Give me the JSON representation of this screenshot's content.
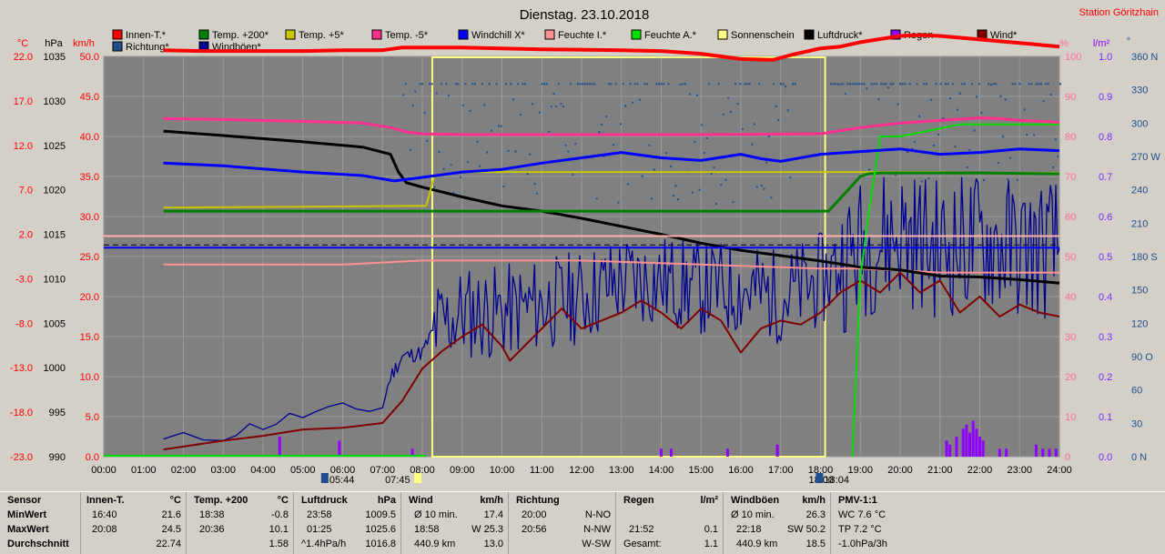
{
  "title": "Dienstag. 23.10.2018",
  "station": "Station Göritzhain",
  "units": {
    "celsius": "°C",
    "hpa": "hPa",
    "kmh": "km/h",
    "percent": "%",
    "lm2": "l/m²",
    "deg": "°"
  },
  "colors": {
    "innen": "#ff0000",
    "temp200": "#008000",
    "temp5p": "#c8c800",
    "temp5m": "#ff2f8f",
    "windchill": "#0000ff",
    "feuchteI": "#ff9090",
    "feuchteA": "#00e000",
    "sonne": "#ffff80",
    "luftdruck": "#000000",
    "regen": "#9000ff",
    "wind": "#800000",
    "richtung": "#1f4f8f",
    "windboeen": "#000090"
  },
  "legend": [
    {
      "label": "Innen-T.*",
      "color": "#ff0000"
    },
    {
      "label": "Temp. +200*",
      "color": "#008000"
    },
    {
      "label": "Temp. +5*",
      "color": "#c8c800"
    },
    {
      "label": "Temp. -5*",
      "color": "#ff2f8f"
    },
    {
      "label": "Windchill X*",
      "color": "#0000ff"
    },
    {
      "label": "Feuchte I.*",
      "color": "#ff9090"
    },
    {
      "label": "Feuchte A.*",
      "color": "#00e000"
    },
    {
      "label": "Sonnenschein",
      "color": "#ffff80"
    },
    {
      "label": "Luftdruck*",
      "color": "#000000"
    },
    {
      "label": "Regen",
      "color": "#9000ff"
    },
    {
      "label": "Wind*",
      "color": "#800000"
    },
    {
      "label": "Richtung*",
      "color": "#1f4f8f"
    },
    {
      "label": "Windböen*",
      "color": "#000090"
    }
  ],
  "chart_data": {
    "type": "line",
    "title": "Dienstag. 23.10.2018",
    "x_ticks": [
      "00:00",
      "01:00",
      "02:00",
      "03:00",
      "04:00",
      "05:00",
      "06:00",
      "07:00",
      "08:00",
      "09:00",
      "10:00",
      "11:00",
      "12:00",
      "13:00",
      "14:00",
      "15:00",
      "16:00",
      "17:00",
      "18:00",
      "19:00",
      "20:00",
      "21:00",
      "22:00",
      "23:00",
      "24:00"
    ],
    "y_temp_ticks": [
      "22.0",
      "17.0",
      "12.0",
      "7.0",
      "2.0",
      "-3.0",
      "-8.0",
      "-13.0",
      "-18.0",
      "-23.0"
    ],
    "y_hpa_ticks": [
      "1035",
      "1030",
      "1025",
      "1020",
      "1015",
      "1010",
      "1005",
      "1000",
      "995",
      "990"
    ],
    "y_kmh_ticks": [
      "50.0",
      "45.0",
      "40.0",
      "35.0",
      "30.0",
      "25.0",
      "20.0",
      "15.0",
      "10.0",
      "5.0",
      "0.0"
    ],
    "y_pct_ticks": [
      "100",
      "90",
      "80",
      "70",
      "60",
      "50",
      "40",
      "30",
      "20",
      "10",
      "0"
    ],
    "y_rain_ticks": [
      "1.0",
      "0.9",
      "0.8",
      "0.7",
      "0.6",
      "0.5",
      "0.4",
      "0.3",
      "0.2",
      "0.1",
      "0.0"
    ],
    "y_dir_ticks": [
      "360 N",
      "330",
      "300",
      "270 W",
      "240",
      "210",
      "180 S",
      "150",
      "120",
      "90 O",
      "60",
      "30",
      "0 N"
    ],
    "sun_markers": {
      "sunrise": "05:44",
      "sunset": "18:04",
      "civil_a": "07:45",
      "civil_b": "18:00"
    },
    "sunshine_interval": [
      "08:15",
      "18:07"
    ],
    "ylim_temp": [
      -23,
      22
    ],
    "ylim_kmh": [
      0,
      50
    ],
    "ylim_hpa": [
      990,
      1035
    ],
    "series": [
      {
        "name": "Innen-T.*",
        "unit": "°C",
        "x": [
          1.5,
          2.5,
          4,
          5,
          6,
          7,
          7.5,
          9,
          11,
          13,
          14,
          15,
          16,
          16.8,
          17.3,
          18,
          18.5,
          19,
          20,
          20.5,
          21,
          22,
          23,
          24
        ],
        "y": [
          22.7,
          22.6,
          22.6,
          22.6,
          22.7,
          22.7,
          23.0,
          23.0,
          22.8,
          22.7,
          22.6,
          22.3,
          21.7,
          21.6,
          22.2,
          22.9,
          23.1,
          23.6,
          24.3,
          24.4,
          24.3,
          23.9,
          23.5,
          23.1
        ]
      },
      {
        "name": "Temp. -5*",
        "unit": "°C",
        "x": [
          1.5,
          3,
          5,
          6.5,
          7.2,
          7.6,
          8,
          9,
          12,
          15,
          18,
          19,
          20,
          21,
          22,
          22.5,
          23,
          24
        ],
        "y": [
          15.0,
          14.9,
          14.7,
          14.5,
          14.0,
          13.5,
          13.3,
          13.2,
          13.2,
          13.2,
          13.3,
          14.0,
          14.5,
          14.8,
          15.1,
          15.0,
          14.8,
          14.6
        ]
      },
      {
        "name": "Temp. +200*",
        "unit": "°C",
        "x": [
          1.5,
          18.2,
          19,
          19.2,
          19.5,
          20,
          22,
          24
        ],
        "y": [
          4.6,
          4.6,
          8.5,
          8.8,
          8.9,
          8.9,
          8.9,
          8.8
        ]
      },
      {
        "name": "Temp. +5*",
        "unit": "°C",
        "x": [
          1.5,
          8.1,
          8.3,
          9,
          12,
          19,
          21,
          21,
          22.0,
          24
        ],
        "y": [
          5.0,
          5.2,
          8.5,
          9.0,
          9.0,
          9.0,
          9.0,
          9.0,
          8.9,
          8.9
        ]
      },
      {
        "name": "Windchill X*",
        "unit": "°C",
        "x": [
          1.5,
          3,
          5,
          6.5,
          7.3,
          8,
          9,
          10,
          11,
          12,
          13,
          14,
          15,
          16,
          16.5,
          17,
          18,
          19,
          20,
          21,
          22,
          23,
          24
        ],
        "y": [
          10.0,
          9.7,
          9.0,
          8.6,
          8.0,
          8.4,
          9.0,
          9.3,
          10.0,
          10.6,
          11.2,
          10.6,
          10.3,
          11.0,
          10.5,
          10.2,
          11.0,
          11.3,
          11.6,
          11.0,
          11.2,
          11.6,
          11.4
        ]
      },
      {
        "name": "Luftdruck*",
        "unit": "hPa",
        "x": [
          1.5,
          3,
          5,
          6.5,
          7.2,
          7.4,
          7.6,
          8,
          9,
          10,
          11,
          12,
          13,
          14,
          15,
          16,
          17,
          18,
          19,
          20,
          21,
          22,
          23,
          24
        ],
        "y": [
          1026.6,
          1026.1,
          1025.4,
          1024.8,
          1024.0,
          1022.0,
          1020.8,
          1020.3,
          1019.2,
          1018.2,
          1017.6,
          1016.8,
          1015.9,
          1015.0,
          1014.0,
          1013.2,
          1012.6,
          1012.0,
          1011.3,
          1011.0,
          1010.3,
          1010.2,
          1009.9,
          1009.5
        ]
      },
      {
        "name": "Feuchte I.*",
        "unit": "%",
        "x": [
          1.5,
          6,
          8,
          12,
          18,
          19,
          21,
          24
        ],
        "y": [
          48,
          48,
          49,
          49,
          47,
          47,
          46,
          46
        ]
      },
      {
        "name": "Feuchte A.*",
        "unit": "%",
        "x": [
          18.8,
          19.0,
          19.2,
          19.5,
          20,
          21,
          21.5,
          24
        ],
        "y": [
          0,
          45,
          60,
          80,
          80,
          82,
          83,
          83
        ]
      },
      {
        "name": "Wind*",
        "unit": "km/h",
        "x": [
          1.5,
          3,
          4,
          5,
          6,
          7,
          7.5,
          8,
          8.5,
          9,
          9.5,
          10,
          10.2,
          11,
          11.5,
          12,
          12.5,
          13,
          13.5,
          14,
          14.5,
          15,
          15.5,
          16,
          16.5,
          17,
          17.5,
          18,
          18.5,
          19,
          19.5,
          20,
          20.5,
          21,
          21.5,
          22,
          22.5,
          23,
          23.5,
          24
        ],
        "y": [
          0.9,
          2.0,
          2.6,
          3.4,
          3.6,
          4.2,
          7.0,
          11.0,
          13.2,
          15.0,
          16.5,
          13.8,
          12.0,
          16.0,
          18.5,
          16.0,
          17.0,
          18.0,
          19.5,
          18.0,
          16.0,
          18.5,
          17.0,
          13.0,
          16.0,
          17.0,
          16.5,
          18.0,
          20.5,
          22.0,
          20.5,
          23.0,
          20.5,
          22.0,
          18.0,
          20.0,
          17.5,
          19.0,
          18.0,
          17.5
        ]
      }
    ],
    "rain_times": [
      "04:25",
      "05:55",
      "07:45",
      "14:00",
      "14:15",
      "15:40",
      "16:55",
      "21:10",
      "21:15",
      "21:25",
      "21:35",
      "21:40",
      "21:45",
      "21:50",
      "21:55",
      "22:00",
      "22:05",
      "22:30",
      "22:40",
      "23:25",
      "23:35",
      "23:45",
      "23:55"
    ],
    "rain_values": [
      0.05,
      0.04,
      0.02,
      0.02,
      0.02,
      0.02,
      0.03,
      0.04,
      0.03,
      0.05,
      0.07,
      0.08,
      0.06,
      0.09,
      0.07,
      0.05,
      0.04,
      0.02,
      0.02,
      0.03,
      0.02,
      0.02,
      0.02
    ]
  },
  "stats": {
    "sensor": {
      "header": "Sensor",
      "min": "MinWert",
      "max": "MaxWert",
      "avg": "Durchschnitt"
    },
    "innen": {
      "header": "Innen-T.",
      "unit": "°C",
      "min_time": "16:40",
      "min_val": "21.6",
      "max_time": "20:08",
      "max_val": "24.5",
      "avg_val": "22.74"
    },
    "temp200": {
      "header": "Temp. +200",
      "unit": "°C",
      "min_time": "18:38",
      "min_val": "-0.8",
      "max_time": "20:36",
      "max_val": "10.1",
      "avg_val": "1.58"
    },
    "luftdruck": {
      "header": "Luftdruck",
      "unit": "hPa",
      "min_time": "23:58",
      "min_val": "1009.5",
      "max_time": "01:25",
      "max_val": "1025.6",
      "avg_label": "^1.4hPa/h",
      "avg_val": "1016.8"
    },
    "wind": {
      "header": "Wind",
      "unit": "km/h",
      "r1_label": "Ø 10 min.",
      "r1_val": "17.4",
      "r2_label": "18:58",
      "r2_val": "W 25.3",
      "r3_label": "440.9 km",
      "r3_val": "13.0"
    },
    "richtung": {
      "header": "Richtung",
      "r1_time": "20:00",
      "r1_val": "N-NO",
      "r2_time": "20:56",
      "r2_val": "N-NW",
      "r3_val": "W-SW"
    },
    "regen": {
      "header": "Regen",
      "unit": "l/m²",
      "r2_time": "21:52",
      "r2_val": "0.1",
      "r3_label": "Gesamt:",
      "r3_val": "1.1"
    },
    "windboeen": {
      "header": "Windböen",
      "unit": "km/h",
      "r1_label": "Ø 10 min.",
      "r1_val": "26.3",
      "r2_label": "22:18",
      "r2_val": "SW 50.2",
      "r3_label": "440.9 km",
      "r3_val": "18.5"
    },
    "pmv": {
      "header": "PMV-1:1",
      "r1": "WC 7.6 °C",
      "r2": "TP 7.2 °C",
      "r3": "-1.0hPa/3h"
    }
  }
}
